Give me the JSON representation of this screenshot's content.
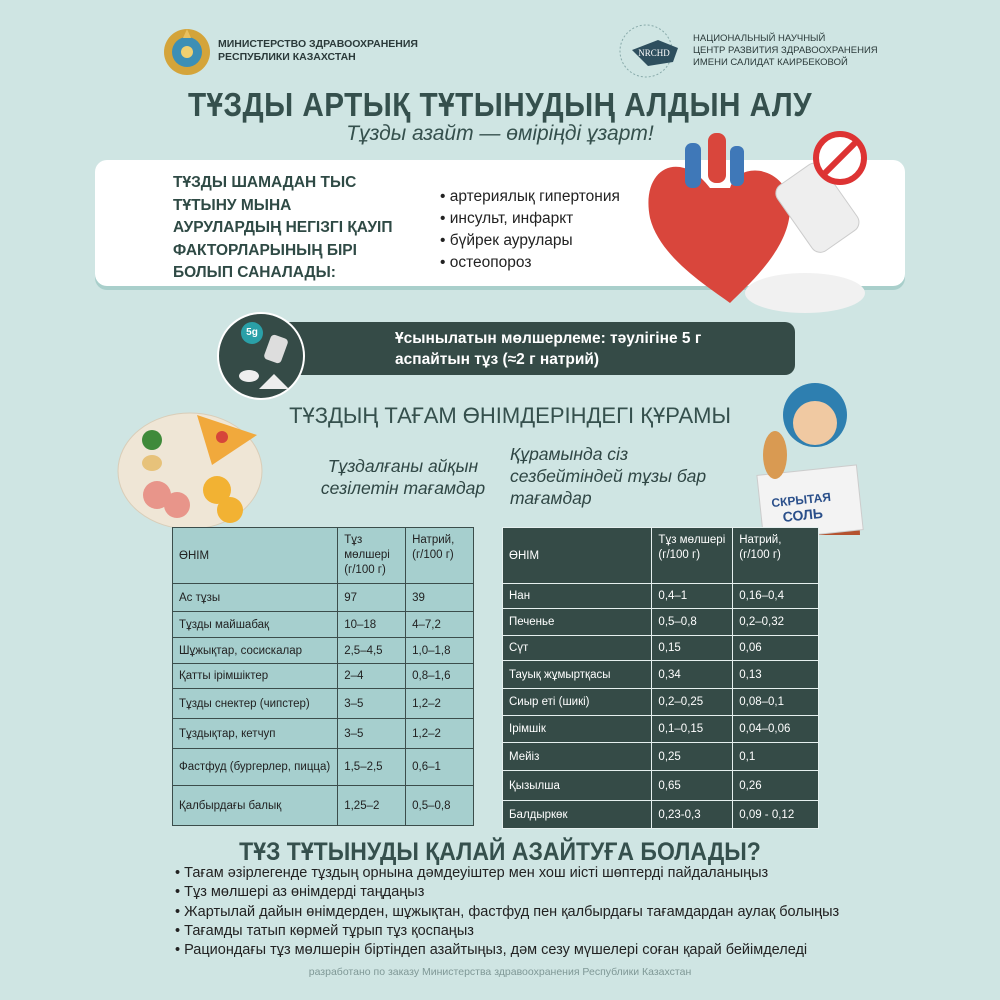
{
  "header": {
    "left_org": [
      "МИНИСТЕРСТВО ЗДРАВООХРАНЕНИЯ",
      "РЕСПУБЛИКИ КАЗАХСТАН"
    ],
    "right_org": [
      "НАЦИОНАЛЬНЫЙ НАУЧНЫЙ",
      "ЦЕНТР РАЗВИТИЯ ЗДРАВООХРАНЕНИЯ",
      "ИМЕНИ САЛИДАТ КАИРБЕКОВОЙ"
    ],
    "right_logo_text": "NRCHD"
  },
  "title": "ТҰЗДЫ АРТЫҚ ТҰТЫНУДЫҢ АЛДЫН АЛУ",
  "subtitle": "Тұзды азайт — өміріңді ұзарт!",
  "risk": {
    "title": "ТҰЗДЫ ШАМАДАН ТЫС ТҰТЫНУ МЫНА АУРУЛАРДЫҢ НЕГІЗГІ ҚАУІП ФАКТОРЛАРЫНЫҢ БІРІ БОЛЫП САНАЛАДЫ:",
    "items": [
      "артериялық гипертония",
      "инсульт, инфаркт",
      "бүйрек аурулары",
      "остеопороз"
    ]
  },
  "recommendation": {
    "badge": "5g",
    "text": "Ұсынылатын мөлшерлеме: тәулігіне 5 г аспайтын тұз (≈2 г натрий)"
  },
  "section_title": "ТҰЗДЫҢ ТАҒАМ ӨНІМДЕРІНДЕГІ ҚҰРАМЫ",
  "left_subtitle": "Тұздалғаны айқын сезілетін тағамдар",
  "right_subtitle": "Құрамында сіз сезбейтіндей тұзы бар тағамдар",
  "hidden_salt_label": [
    "СКРЫТАЯ",
    "СОЛЬ"
  ],
  "table_headers": [
    "ӨНІМ",
    "Тұз мөлшері (г/100 г)",
    "Натрий, (г/100 г)"
  ],
  "left_table": [
    [
      "Ас тұзы",
      "97",
      "39"
    ],
    [
      "Тұзды майшабақ",
      "10–18",
      "4–7,2"
    ],
    [
      "Шұжықтар, сосискалар",
      "2,5–4,5",
      "1,0–1,8"
    ],
    [
      "Қатты ірімшіктер",
      "2–4",
      "0,8–1,6"
    ],
    [
      "Тұзды снектер (чипстер)",
      "3–5",
      "1,2–2"
    ],
    [
      "Тұздықтар, кетчуп",
      "3–5",
      "1,2–2"
    ],
    [
      "Фастфуд (бургерлер, пицца)",
      "1,5–2,5",
      "0,6–1"
    ],
    [
      "Қалбырдағы балық",
      "1,25–2",
      "0,5–0,8"
    ]
  ],
  "right_table": [
    [
      "Нан",
      "0,4–1",
      "0,16–0,4"
    ],
    [
      "Печенье",
      "0,5–0,8",
      "0,2–0,32"
    ],
    [
      "Сүт",
      "0,15",
      "0,06"
    ],
    [
      "Тауық жұмыртқасы",
      "0,34",
      "0,13"
    ],
    [
      "Сиыр еті (шикі)",
      "0,2–0,25",
      "0,08–0,1"
    ],
    [
      "Ірімшік",
      "0,1–0,15",
      "0,04–0,06"
    ],
    [
      "Мейіз",
      "0,25",
      "0,1"
    ],
    [
      "Қызылша",
      "0,65",
      "0,26"
    ],
    [
      "Балдыркөк",
      "0,23-0,3",
      "0,09 - 0,12"
    ]
  ],
  "how": {
    "title": "ТҰЗ ТҰТЫНУДЫ ҚАЛАЙ АЗАЙТУҒА БОЛАДЫ?",
    "items": [
      "Тағам әзірлегенде тұздың орнына дәмдеуіштер мен хош иісті шөптерді пайдаланыңыз",
      "Тұз мөлшері аз өнімдерді таңдаңыз",
      "Жартылай дайын өнімдерден, шұжықтан, фастфуд пен қалбырдағы тағамдардан аулақ  болыңыз",
      "Тағамды татып көрмей тұрып тұз қоспаңыз",
      "Рациондағы тұз мөлшерін біртіндеп азайтыңыз, дәм сезу мүшелері соған қарай бейімделеді"
    ]
  },
  "footer": "разработано по заказу Министерства здравоохранения Республики Казахстан",
  "colors": {
    "background": "#cfe5e3",
    "dark": "#354b47",
    "left_table": "#a6cfce"
  }
}
